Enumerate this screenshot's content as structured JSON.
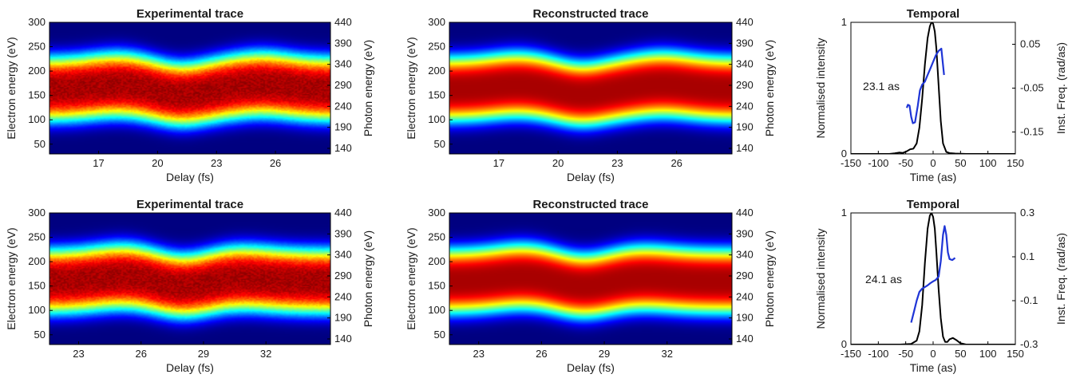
{
  "chart_data": [
    {
      "type": "heatmap",
      "title": "Experimental trace",
      "xlabel": "Delay (fs)",
      "ylabel": "Electron energy (eV)",
      "ylabel_right": "Photon energy (eV)",
      "xlim": [
        14.5,
        28.8
      ],
      "ylim": [
        30,
        300
      ],
      "xticks": [
        17,
        20,
        23,
        26
      ],
      "yticks": [
        50,
        100,
        150,
        200,
        250,
        300
      ],
      "yticks_right": [
        140,
        190,
        240,
        290,
        340,
        390,
        440
      ],
      "colormap": "jet",
      "trace": {
        "bumps": [
          {
            "x": 18,
            "amp": 8
          },
          {
            "x": 25.3,
            "amp": 9
          }
        ],
        "valleys": [
          {
            "x": 21.2,
            "amp": -10
          }
        ],
        "band_low_at_min": 88,
        "band_high_at_min": 215,
        "noise": 0.07
      }
    },
    {
      "type": "heatmap",
      "title": "Reconstructed trace",
      "xlabel": "Delay (fs)",
      "ylabel": "Electron energy (eV)",
      "ylabel_right": "Photon energy (eV)",
      "xlim": [
        14.5,
        28.8
      ],
      "ylim": [
        30,
        300
      ],
      "xticks": [
        17,
        20,
        23,
        26
      ],
      "yticks": [
        50,
        100,
        150,
        200,
        250,
        300
      ],
      "yticks_right": [
        140,
        190,
        240,
        290,
        340,
        390,
        440
      ],
      "colormap": "jet",
      "trace": {
        "bumps": [
          {
            "x": 18,
            "amp": 8
          },
          {
            "x": 25.3,
            "amp": 9
          }
        ],
        "valleys": [
          {
            "x": 21.2,
            "amp": -10
          }
        ],
        "band_low_at_min": 88,
        "band_high_at_min": 215,
        "noise": 0
      }
    },
    {
      "type": "line",
      "title": "Temporal",
      "xlabel": "Time (as)",
      "ylabel": "Normalised intensity",
      "ylabel_right": "Inst. Freq. (rad/as)",
      "xlim": [
        -150,
        150
      ],
      "ylim": [
        0,
        1
      ],
      "ylim_right": [
        -0.2,
        0.1
      ],
      "xticks": [
        -150,
        -100,
        -50,
        0,
        50,
        100,
        150
      ],
      "yticks": [
        0,
        1
      ],
      "yticks_right": [
        0.05,
        -0.05,
        -0.15
      ],
      "annotation": "23.1 as",
      "series": [
        {
          "axis": "left",
          "color": "#000000",
          "x": [
            -150,
            -80,
            -70,
            -62,
            -55,
            -48,
            -42,
            -36,
            -30,
            -25,
            -20,
            -15,
            -10,
            -6,
            -3,
            0,
            3,
            6,
            10,
            14,
            18,
            24,
            30,
            40,
            60,
            150
          ],
          "y": [
            0,
            0,
            0.005,
            0.01,
            0.008,
            0.02,
            0.035,
            0.04,
            0.08,
            0.2,
            0.42,
            0.68,
            0.88,
            0.97,
            1.0,
            0.99,
            0.93,
            0.8,
            0.52,
            0.25,
            0.08,
            0.015,
            0.006,
            0.003,
            0.0,
            0
          ]
        },
        {
          "axis": "right",
          "color": "#1f35d6",
          "x": [
            -48,
            -46,
            -43,
            -40,
            -37,
            -33,
            -28,
            -24,
            -20,
            -15,
            -10,
            -5,
            0,
            5,
            10,
            15,
            20
          ],
          "y": [
            -0.095,
            -0.088,
            -0.09,
            -0.115,
            -0.13,
            -0.128,
            -0.09,
            -0.055,
            -0.042,
            -0.035,
            -0.02,
            -0.005,
            0.01,
            0.025,
            0.035,
            0.04,
            -0.02
          ]
        }
      ]
    },
    {
      "type": "heatmap",
      "title": "Experimental trace",
      "xlabel": "Delay (fs)",
      "ylabel": "Electron energy (eV)",
      "ylabel_right": "Photon energy (eV)",
      "xlim": [
        21.6,
        35.1
      ],
      "ylim": [
        30,
        300
      ],
      "xticks": [
        23,
        26,
        29,
        32
      ],
      "yticks": [
        50,
        100,
        150,
        200,
        250,
        300
      ],
      "yticks_right": [
        140,
        190,
        240,
        290,
        340,
        390,
        440
      ],
      "colormap": "jet",
      "trace": {
        "bumps": [
          {
            "x": 25.2,
            "amp": 9
          },
          {
            "x": 30.8,
            "amp": 6
          }
        ],
        "valleys": [
          {
            "x": 28,
            "amp": -10
          }
        ],
        "band_low_at_min": 85,
        "band_high_at_min": 212,
        "noise": 0.07
      }
    },
    {
      "type": "heatmap",
      "title": "Reconstructed trace",
      "xlabel": "Delay (fs)",
      "ylabel": "Electron energy (eV)",
      "ylabel_right": "Photon energy (eV)",
      "xlim": [
        21.6,
        35.1
      ],
      "ylim": [
        30,
        300
      ],
      "xticks": [
        23,
        26,
        29,
        32
      ],
      "yticks": [
        50,
        100,
        150,
        200,
        250,
        300
      ],
      "yticks_right": [
        140,
        190,
        240,
        290,
        340,
        390,
        440
      ],
      "colormap": "jet",
      "trace": {
        "bumps": [
          {
            "x": 25.2,
            "amp": 9
          },
          {
            "x": 30.8,
            "amp": 6
          }
        ],
        "valleys": [
          {
            "x": 28,
            "amp": -10
          }
        ],
        "band_low_at_min": 85,
        "band_high_at_min": 212,
        "noise": 0
      }
    },
    {
      "type": "line",
      "title": "Temporal",
      "xlabel": "Time (as)",
      "ylabel": "Normalised intensity",
      "ylabel_right": "Inst. Freq. (rad/as)",
      "xlim": [
        -150,
        150
      ],
      "ylim": [
        0,
        1
      ],
      "ylim_right": [
        -0.3,
        0.3
      ],
      "xticks": [
        -150,
        -100,
        -50,
        0,
        50,
        100,
        150
      ],
      "yticks": [
        0,
        1
      ],
      "yticks_right": [
        0.3,
        0.1,
        -0.1,
        -0.3
      ],
      "annotation": "24.1 as",
      "series": [
        {
          "axis": "left",
          "color": "#000000",
          "x": [
            -150,
            -60,
            -40,
            -30,
            -25,
            -20,
            -15,
            -10,
            -6,
            -3,
            0,
            3,
            6,
            10,
            14,
            18,
            22,
            26,
            30,
            36,
            42,
            50,
            60,
            150
          ],
          "y": [
            0,
            0,
            0.005,
            0.03,
            0.1,
            0.3,
            0.62,
            0.88,
            0.98,
            1.0,
            0.97,
            0.88,
            0.7,
            0.42,
            0.2,
            0.06,
            0.02,
            0.02,
            0.04,
            0.05,
            0.035,
            0.01,
            0.0,
            0
          ]
        },
        {
          "axis": "right",
          "color": "#1f35d6",
          "x": [
            -40,
            -35,
            -30,
            -25,
            -20,
            -15,
            -10,
            -5,
            0,
            5,
            10,
            14,
            18,
            21,
            24,
            27,
            30,
            35,
            40
          ],
          "y": [
            -0.2,
            -0.15,
            -0.1,
            -0.06,
            -0.045,
            -0.038,
            -0.03,
            -0.02,
            -0.012,
            -0.005,
            0.01,
            0.08,
            0.2,
            0.24,
            0.2,
            0.12,
            0.09,
            0.085,
            0.095
          ]
        }
      ]
    }
  ]
}
